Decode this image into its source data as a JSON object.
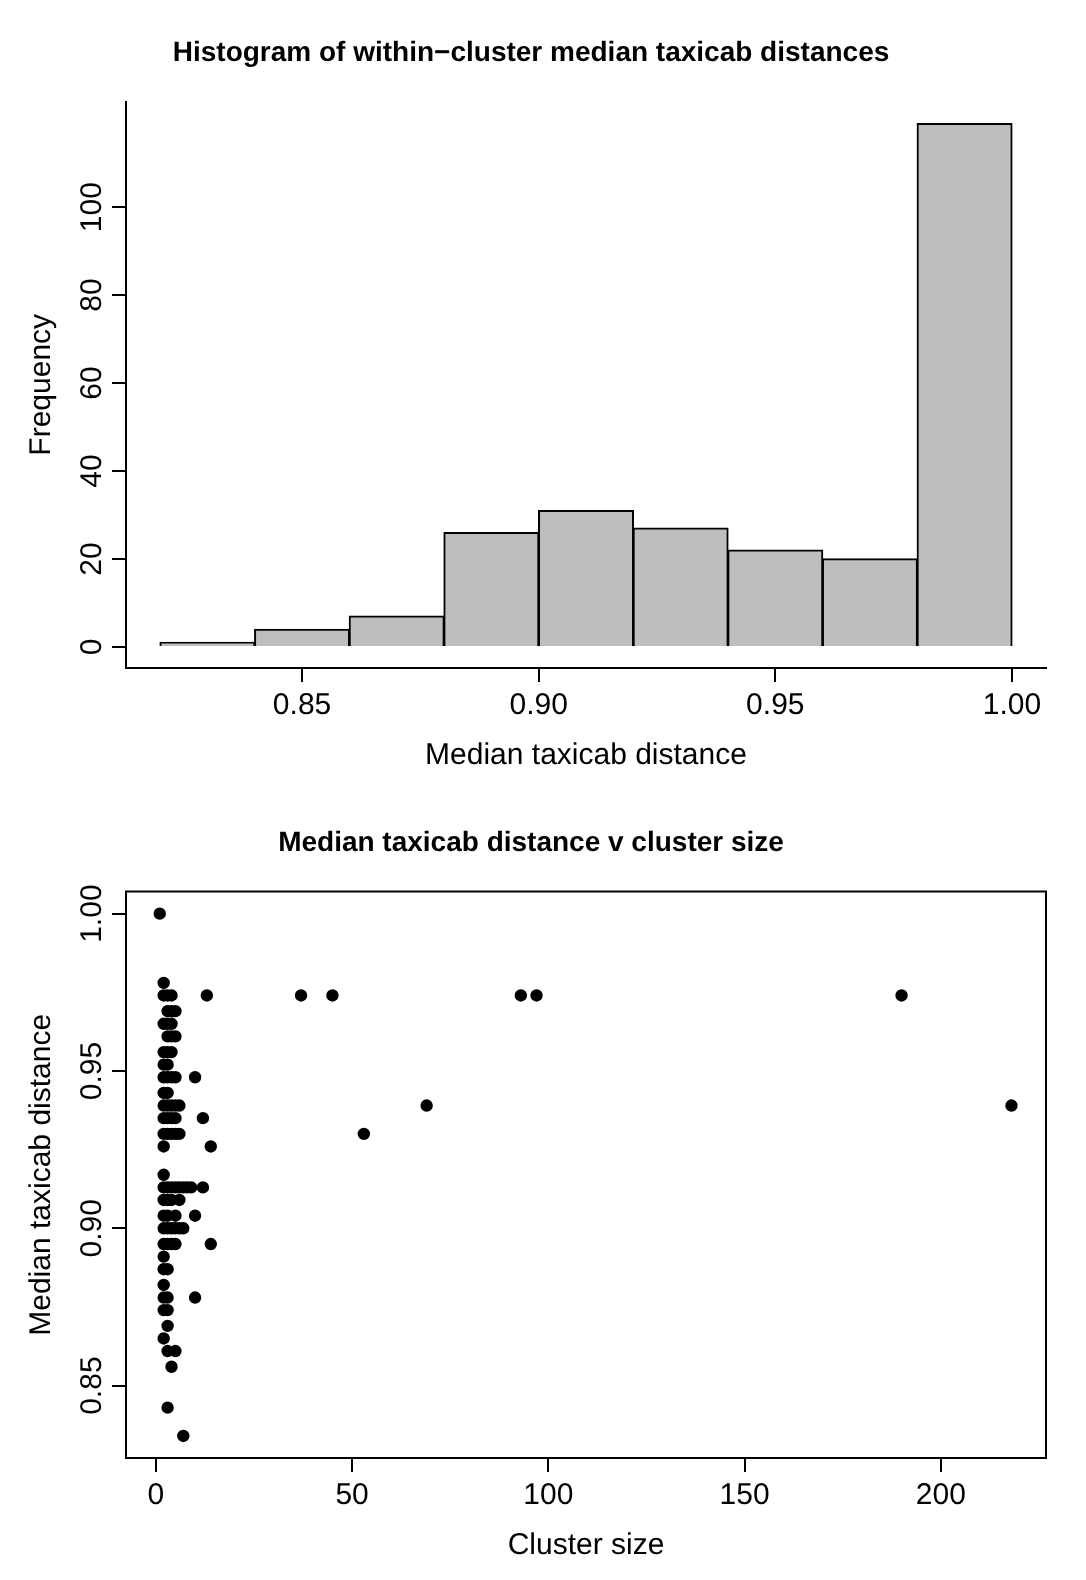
{
  "chart_data": [
    {
      "type": "histogram",
      "title": "Histogram of within−cluster median taxicab distances",
      "xlabel": "Median taxicab distance",
      "ylabel": "Frequency",
      "bins": [
        0.82,
        0.84,
        0.86,
        0.88,
        0.9,
        0.92,
        0.94,
        0.96,
        0.98,
        1.0
      ],
      "values": [
        1,
        4,
        7,
        26,
        31,
        27,
        22,
        20,
        119
      ],
      "color": "#bebebe",
      "xlim": [
        0.8128,
        1.0072
      ],
      "xticks": [
        {
          "value": 0.85,
          "label": "0.85"
        },
        {
          "value": 0.9,
          "label": "0.90"
        },
        {
          "value": 0.95,
          "label": "0.95"
        },
        {
          "value": 1,
          "label": "1.00"
        }
      ],
      "ylim": [
        -4.8,
        124
      ],
      "yticks": [
        0,
        20,
        40,
        60,
        80,
        100
      ],
      "grid": false,
      "legend": false
    },
    {
      "type": "scatter",
      "title": "Median taxicab distance v cluster size",
      "xlabel": "Cluster size",
      "ylabel": "Median taxicab distance",
      "marker": "circle",
      "color": "#000000",
      "grid": false,
      "legend": false,
      "x": [
        1,
        2,
        2,
        3,
        4,
        3,
        4,
        5,
        2,
        3,
        4,
        3,
        4,
        5,
        2,
        3,
        4,
        2,
        3,
        2,
        3,
        4,
        5,
        2,
        3,
        2,
        3,
        4,
        5,
        6,
        2,
        3,
        4,
        5,
        2,
        3,
        4,
        5,
        6,
        2,
        2,
        2,
        3,
        4,
        5,
        6,
        7,
        8,
        9,
        2,
        3,
        4,
        2,
        3,
        5,
        2,
        3,
        4,
        5,
        6,
        7,
        2,
        3,
        4,
        5,
        2,
        2,
        3,
        2,
        2,
        3,
        2,
        3,
        3,
        2,
        3,
        5,
        4,
        3,
        7,
        13,
        10,
        12,
        14,
        12,
        6,
        10,
        14,
        10,
        37,
        45,
        53,
        69,
        93,
        97,
        190,
        218
      ],
      "values": [
        1.0,
        0.978,
        0.974,
        0.974,
        0.974,
        0.969,
        0.969,
        0.969,
        0.965,
        0.965,
        0.965,
        0.961,
        0.961,
        0.961,
        0.956,
        0.956,
        0.956,
        0.952,
        0.952,
        0.948,
        0.948,
        0.948,
        0.948,
        0.943,
        0.943,
        0.939,
        0.939,
        0.939,
        0.939,
        0.939,
        0.935,
        0.935,
        0.935,
        0.935,
        0.93,
        0.93,
        0.93,
        0.93,
        0.93,
        0.926,
        0.917,
        0.913,
        0.913,
        0.913,
        0.913,
        0.913,
        0.913,
        0.913,
        0.913,
        0.909,
        0.909,
        0.909,
        0.904,
        0.904,
        0.904,
        0.9,
        0.9,
        0.9,
        0.9,
        0.9,
        0.9,
        0.895,
        0.895,
        0.895,
        0.895,
        0.891,
        0.887,
        0.887,
        0.882,
        0.878,
        0.878,
        0.874,
        0.874,
        0.869,
        0.865,
        0.861,
        0.861,
        0.856,
        0.843,
        0.834,
        0.974,
        0.948,
        0.935,
        0.926,
        0.913,
        0.909,
        0.904,
        0.895,
        0.878,
        0.974,
        0.974,
        0.93,
        0.939,
        0.974,
        0.974,
        0.974,
        0.939
      ],
      "xlim": [
        -7.6,
        226.8
      ],
      "xticks": [
        0,
        50,
        100,
        150,
        200
      ],
      "ylim": [
        0.827,
        1.007
      ],
      "yticks": [
        {
          "value": 0.85,
          "label": "0.85"
        },
        {
          "value": 0.9,
          "label": "0.90"
        },
        {
          "value": 0.95,
          "label": "0.95"
        },
        {
          "value": 1,
          "label": "1.00"
        }
      ]
    }
  ]
}
